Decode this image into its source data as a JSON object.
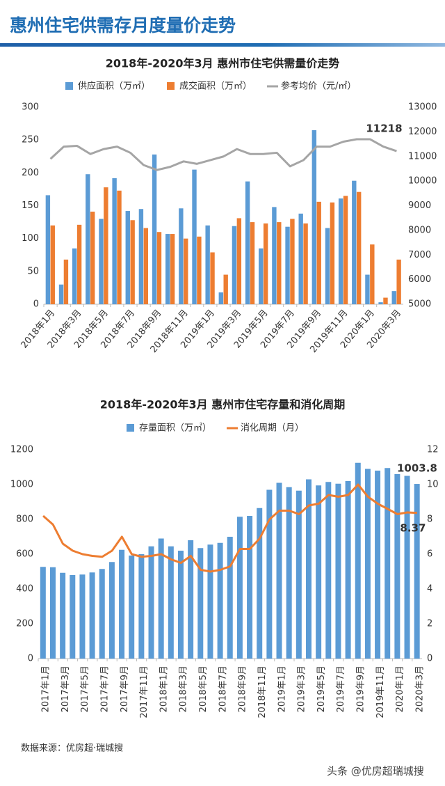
{
  "header": {
    "title": "惠州住宅供需存月度量价走势"
  },
  "chart_data": [
    {
      "type": "bar",
      "title": "2018年-2020年3月 惠州市住宅供需量价走势",
      "categories": [
        "2018年1月",
        null,
        "2018年3月",
        null,
        "2018年5月",
        null,
        "2018年7月",
        null,
        "2018年9月",
        null,
        "2018年11月",
        null,
        "2019年1月",
        null,
        "2019年3月",
        null,
        "2019年5月",
        null,
        "2019年7月",
        null,
        "2019年9月",
        null,
        "2019年11月",
        null,
        "2020年1月",
        null,
        "2020年3月"
      ],
      "series": [
        {
          "name": "供应面积（万㎡）",
          "type": "bar",
          "color": "#5b9bd5",
          "values": [
            166,
            30,
            85,
            198,
            130,
            192,
            142,
            145,
            228,
            107,
            146,
            205,
            120,
            18,
            119,
            187,
            85,
            148,
            118,
            138,
            265,
            116,
            161,
            188,
            45,
            3,
            20
          ]
        },
        {
          "name": "成交面积（万㎡）",
          "type": "bar",
          "color": "#ed7d31",
          "values": [
            120,
            68,
            121,
            141,
            178,
            173,
            128,
            116,
            110,
            107,
            100,
            103,
            79,
            45,
            131,
            125,
            123,
            125,
            130,
            123,
            156,
            155,
            165,
            171,
            91,
            10,
            68
          ]
        },
        {
          "name": "参考均价（元/㎡）",
          "type": "line",
          "axis": "y2",
          "color": "#a5a5a5",
          "values": [
            10900,
            11400,
            11430,
            11100,
            11300,
            11400,
            11150,
            10650,
            10450,
            10580,
            10800,
            10700,
            10850,
            11000,
            11300,
            11100,
            11100,
            11150,
            10600,
            10850,
            11400,
            11400,
            11600,
            11700,
            11700,
            11400,
            11218
          ]
        }
      ],
      "ylim": [
        0,
        300
      ],
      "yticks": [
        0,
        50,
        100,
        150,
        200,
        250,
        300
      ],
      "y2lim": [
        5000,
        13000
      ],
      "y2ticks": [
        5000,
        6000,
        7000,
        8000,
        9000,
        10000,
        11000,
        12000,
        13000
      ],
      "grid": false
    },
    {
      "type": "bar",
      "title": "2018年-2020年3月 惠州市住宅存量和消化周期",
      "categories": [
        "2017年1月",
        null,
        "2017年3月",
        null,
        "2017年5月",
        null,
        "2017年7月",
        null,
        "2017年9月",
        null,
        "2017年11月",
        null,
        "2018年1月",
        null,
        "2018年3月",
        null,
        "2018年5月",
        null,
        "2018年7月",
        null,
        "2018年9月",
        null,
        "2018年11月",
        null,
        "2019年1月",
        null,
        "2019年3月",
        null,
        "2019年5月",
        null,
        "2019年7月",
        null,
        "2019年9月",
        null,
        "2019年11月",
        null,
        "2020年1月",
        null,
        "2020年3月"
      ],
      "series": [
        {
          "name": "存量面积（万㎡）",
          "type": "bar",
          "color": "#5b9bd5",
          "values": [
            527,
            525,
            493,
            480,
            483,
            495,
            515,
            555,
            625,
            592,
            600,
            645,
            690,
            645,
            620,
            680,
            635,
            655,
            665,
            700,
            815,
            820,
            865,
            970,
            1010,
            985,
            965,
            1030,
            995,
            1015,
            1005,
            1020,
            1125,
            1090,
            1080,
            1095,
            1060,
            1050,
            1003.8
          ]
        },
        {
          "name": "消化周期（月）",
          "type": "line",
          "axis": "y2",
          "color": "#ed7d31",
          "values": [
            8.2,
            7.7,
            6.6,
            6.2,
            6.0,
            5.9,
            5.85,
            6.2,
            7.0,
            6.0,
            5.85,
            5.9,
            6.0,
            5.7,
            5.5,
            5.9,
            5.1,
            5.0,
            5.1,
            5.3,
            6.3,
            6.3,
            6.9,
            8.0,
            8.5,
            8.5,
            8.3,
            8.8,
            8.9,
            9.4,
            9.3,
            9.4,
            10.0,
            9.3,
            8.9,
            8.6,
            8.3,
            8.4,
            8.37
          ]
        }
      ],
      "ylim": [
        0,
        1200
      ],
      "yticks": [
        0,
        200,
        400,
        600,
        800,
        1000,
        1200
      ],
      "y2lim": [
        0,
        12
      ],
      "y2ticks": [
        0,
        2,
        4,
        6,
        8,
        10,
        12
      ],
      "grid": false
    }
  ],
  "footer": {
    "source": "数据来源：优房超·瑞城搜",
    "watermark": "头条 @优房超瑞城搜"
  }
}
